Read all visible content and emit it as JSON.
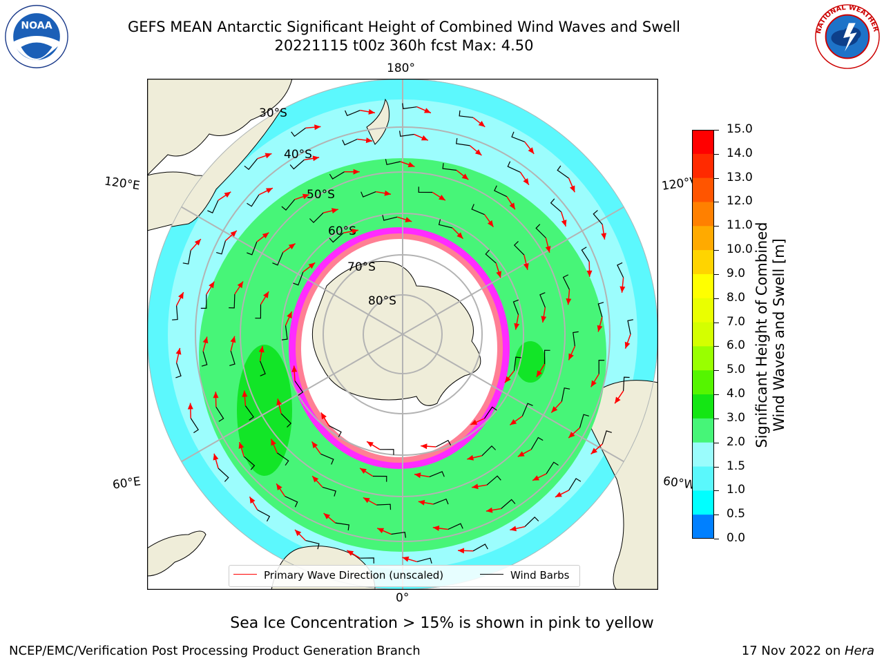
{
  "title": {
    "line1": "GEFS MEAN Antarctic Significant Height of Combined Wind Waves and Swell",
    "line2": "20221115 t00z 360h fcst   Max: 4.50"
  },
  "logos": {
    "left": "NOAA",
    "left_ring_text": "NATIONAL OCEANIC AND ATMOSPHERIC ADMINISTRATION · U.S. DEPARTMENT OF COMMERCE",
    "right_ring_text": "NATIONAL WEATHER SERVICE"
  },
  "map": {
    "projection": "south-polar-stereographic",
    "longitude_labels": {
      "top": "180°",
      "bottom": "0°",
      "left_upper": "120°E",
      "left_lower": "60°E",
      "right_upper": "120°W",
      "right_lower": "60°W"
    },
    "latitude_labels": [
      "30°S",
      "40°S",
      "50°S",
      "60°S",
      "70°S",
      "80°S"
    ],
    "field": "Significant Height of Combined Wind Waves and Swell",
    "max_value": 4.5,
    "colors": {
      "land": "#efedd9",
      "ocean_low": "#5cf8fd",
      "ocean_mid": "#9cfdfd",
      "wave_3_4": "#47f578",
      "wave_4_5": "#12e527",
      "sea_ice": "#ff2bff",
      "ice_shelf": "#ffffff",
      "arrows": "#ff0000",
      "barbs": "#000000",
      "grid": "#b3b3b3"
    }
  },
  "colorbar": {
    "label_line1": "Significant Height of Combined",
    "label_line2": "Wind Waves and Swell [m]",
    "ticks": [
      "15.0",
      "14.0",
      "13.0",
      "12.0",
      "11.0",
      "10.0",
      "9.0",
      "8.0",
      "7.0",
      "6.0",
      "5.0",
      "4.0",
      "3.0",
      "2.0",
      "1.5",
      "1.0",
      "0.5",
      "0.0"
    ],
    "colors_top_to_bottom": [
      "#ff0000",
      "#ff2a00",
      "#ff5500",
      "#ff8000",
      "#ffaa00",
      "#ffd400",
      "#ffff00",
      "#eaff00",
      "#d4ff00",
      "#99ff00",
      "#55f500",
      "#14e614",
      "#46f578",
      "#9afcfc",
      "#5af8fc",
      "#00ffff",
      "#0080ff",
      "#0000ff"
    ]
  },
  "legend": {
    "primary_wave": "Primary Wave Direction (unscaled)",
    "wind_barbs": "Wind Barbs"
  },
  "note": "Sea Ice Concentration > 15% is shown in pink to yellow",
  "footer": {
    "left": "NCEP/EMC/Verification Post Processing Product Generation Branch",
    "right_date": "17 Nov 2022 on ",
    "right_host": "Hera"
  }
}
